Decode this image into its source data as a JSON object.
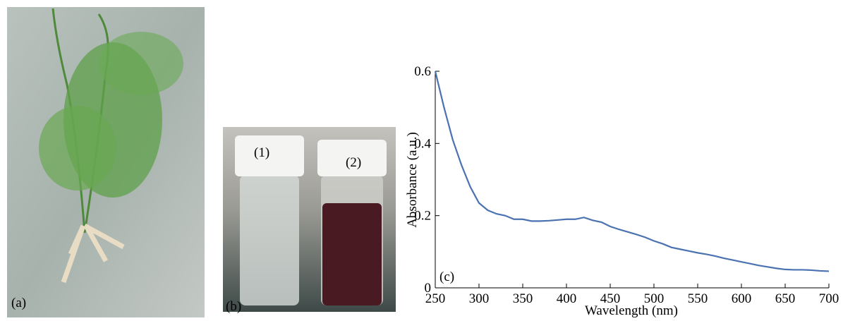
{
  "panels": {
    "a": {
      "label": "(a)"
    },
    "b": {
      "label": "(b)",
      "vial_1": "(1)",
      "vial_2": "(2)"
    }
  },
  "chart_data": {
    "type": "line",
    "annotation": "(c)",
    "x_label": "Wavelength (nm)",
    "y_label": "Absorbance (a.u.)",
    "x": [
      250,
      260,
      270,
      280,
      290,
      300,
      310,
      320,
      330,
      340,
      350,
      360,
      370,
      380,
      390,
      400,
      410,
      420,
      430,
      440,
      450,
      460,
      470,
      480,
      490,
      500,
      510,
      520,
      530,
      540,
      550,
      560,
      570,
      580,
      590,
      600,
      610,
      620,
      630,
      640,
      650,
      660,
      670,
      680,
      690,
      700
    ],
    "series": [
      {
        "color": "#4a72b0",
        "values": [
          0.6,
          0.5,
          0.41,
          0.34,
          0.28,
          0.235,
          0.215,
          0.205,
          0.2,
          0.19,
          0.19,
          0.185,
          0.185,
          0.186,
          0.188,
          0.19,
          0.19,
          0.195,
          0.187,
          0.182,
          0.17,
          0.162,
          0.155,
          0.148,
          0.14,
          0.13,
          0.122,
          0.112,
          0.107,
          0.102,
          0.097,
          0.093,
          0.088,
          0.082,
          0.077,
          0.072,
          0.067,
          0.062,
          0.058,
          0.054,
          0.051,
          0.05,
          0.05,
          0.049,
          0.047,
          0.046
        ]
      }
    ],
    "xlim": [
      250,
      700
    ],
    "ylim": [
      0,
      0.6
    ],
    "xticks": [
      250,
      300,
      350,
      400,
      450,
      500,
      550,
      600,
      650,
      700
    ],
    "yticks": [
      0,
      0.2,
      0.4,
      0.6
    ]
  }
}
